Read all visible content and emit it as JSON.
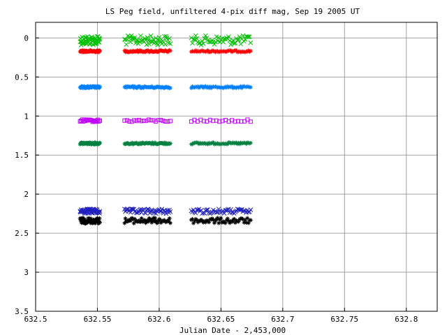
{
  "chart_data": {
    "type": "scatter",
    "title": "LS Peg field, unfiltered 4-pix diff mag, Sep 19 2005 UT",
    "xlabel": "Julian Date - 2,453,000",
    "ylabel": "",
    "xlim": [
      632.5,
      632.825
    ],
    "ylim": [
      3.5,
      -0.2
    ],
    "y_inverted": true,
    "grid": true,
    "x_ticks": [
      632.5,
      632.55,
      632.6,
      632.65,
      632.7,
      632.75,
      632.8
    ],
    "x_tick_labels": [
      "632.5",
      "632.55",
      "632.6",
      "632.65",
      "632.7",
      "632.75",
      "632.8"
    ],
    "y_ticks": [
      0,
      0.5,
      1,
      1.5,
      2,
      2.5,
      3,
      3.5
    ],
    "y_tick_labels": [
      "0",
      "0.5",
      "1",
      "1.5",
      "2",
      "2.5",
      "3",
      "3.5"
    ],
    "segments": [
      [
        632.536,
        632.552
      ],
      [
        632.572,
        632.609
      ],
      [
        632.626,
        632.674
      ]
    ],
    "series": [
      {
        "color": "#00c000",
        "marker": "x",
        "level": 0.03,
        "scatter": 0.06
      },
      {
        "color": "#ff0000",
        "marker": "star",
        "level": 0.17,
        "scatter": 0.012
      },
      {
        "color": "#0080ff",
        "marker": "star",
        "level": 0.63,
        "scatter": 0.012
      },
      {
        "color": "#c000ff",
        "marker": "square",
        "level": 1.06,
        "scatter": 0.015
      },
      {
        "color": "#008040",
        "marker": "star",
        "level": 1.35,
        "scatter": 0.012
      },
      {
        "color": "#2020c0",
        "marker": "x",
        "level": 2.22,
        "scatter": 0.03
      },
      {
        "color": "#000000",
        "marker": "star",
        "level": 2.34,
        "scatter": 0.035
      }
    ]
  }
}
